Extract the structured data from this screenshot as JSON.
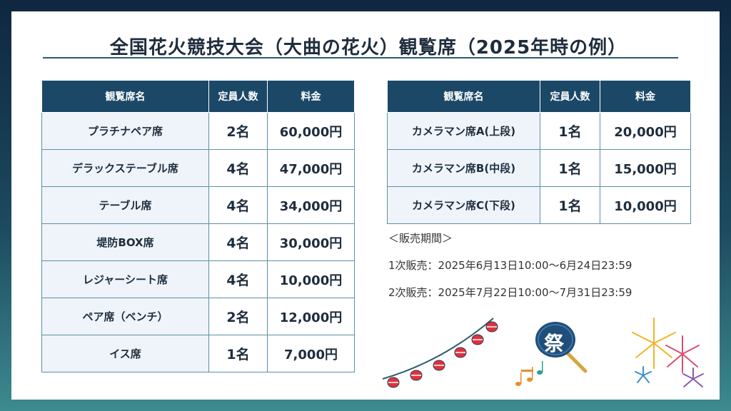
{
  "title": "全国花火競技大会（大曲の花火）観覧席（2025年時の例）",
  "headers": {
    "name": "観覧席名",
    "capacity": "定員人数",
    "price": "料金"
  },
  "left_rows": [
    {
      "name": "プラチナペア席",
      "capacity": "2名",
      "price": "60,000円"
    },
    {
      "name": "デラックステーブル席",
      "capacity": "4名",
      "price": "47,000円"
    },
    {
      "name": "テーブル席",
      "capacity": "4名",
      "price": "34,000円"
    },
    {
      "name": "堤防BOX席",
      "capacity": "4名",
      "price": "30,000円"
    },
    {
      "name": "レジャーシート席",
      "capacity": "4名",
      "price": "10,000円"
    },
    {
      "name": "ペア席（ベンチ）",
      "capacity": "2名",
      "price": "12,000円"
    },
    {
      "name": "イス席",
      "capacity": "1名",
      "price": "7,000円"
    }
  ],
  "right_rows": [
    {
      "name": "カメラマン席A(上段)",
      "capacity": "1名",
      "price": "20,000円"
    },
    {
      "name": "カメラマン席B(中段)",
      "capacity": "1名",
      "price": "15,000円"
    },
    {
      "name": "カメラマン席C(下段)",
      "capacity": "1名",
      "price": "10,000円"
    }
  ],
  "sales": {
    "heading": "＜販売期間＞",
    "first": "1次販売：2025年6月13日10:00〜6月24日23:59",
    "second": "2次販売：2025年7月22日10:00〜7月31日23:59"
  },
  "deco": {
    "fan_char": "祭",
    "icons": [
      "lantern-garland-icon",
      "uchiwa-fan-icon",
      "music-notes-icon",
      "fireworks-icon"
    ],
    "colors": {
      "header_bg": "#1c4868",
      "name_cell_bg": "#eef4fa",
      "lantern": "#e0323c"
    }
  }
}
